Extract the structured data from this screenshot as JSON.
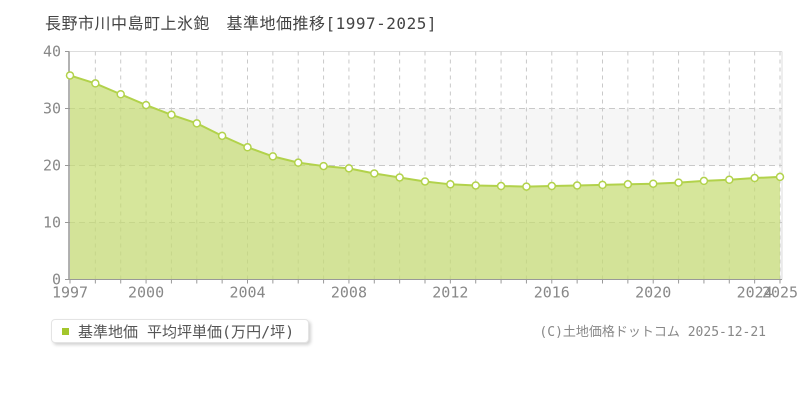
{
  "page": {
    "title": "長野市川中島町上氷鉋　基準地価推移[1997-2025]",
    "copyright": "(C)土地価格ドットコム 2025-12-21"
  },
  "legend": {
    "label": "基準地価 平均坪単価(万円/坪)",
    "marker_color": "#a3c62c"
  },
  "chart_data": {
    "type": "area",
    "title": "長野市川中島町上氷鉋 基準地価推移[1997-2025]",
    "series_name": "基準地価 平均坪単価(万円/坪)",
    "unit": "万円/坪",
    "x": [
      1997,
      1998,
      1999,
      2000,
      2001,
      2002,
      2003,
      2004,
      2005,
      2006,
      2007,
      2008,
      2009,
      2010,
      2011,
      2012,
      2013,
      2014,
      2015,
      2016,
      2017,
      2018,
      2019,
      2020,
      2021,
      2022,
      2023,
      2024,
      2025
    ],
    "values": [
      35.8,
      34.4,
      32.5,
      30.6,
      28.9,
      27.4,
      25.2,
      23.2,
      21.6,
      20.5,
      19.9,
      19.5,
      18.6,
      17.9,
      17.2,
      16.7,
      16.5,
      16.4,
      16.3,
      16.4,
      16.5,
      16.6,
      16.7,
      16.8,
      17.0,
      17.3,
      17.5,
      17.8,
      18.0
    ],
    "xlabel": "",
    "ylabel": "",
    "ylim": [
      0,
      40
    ],
    "y_ticks": [
      0,
      10,
      20,
      30,
      40
    ],
    "x_tick_labels": [
      "1997",
      "2000",
      "2004",
      "2008",
      "2012",
      "2016",
      "2020",
      "2024",
      "2025"
    ],
    "grid": true,
    "grid_style": "dashed",
    "legend_position": "bottom-left",
    "colors": {
      "line": "#b2d24b",
      "fill": "#c4db70",
      "marker_fill": "#ffffff",
      "band_alt": "#f6f6f6",
      "band_main": "#ffffff",
      "grid": "#c9c9c9",
      "border": "#dddddd",
      "axis_y": "#666666",
      "axis_x": "#999999",
      "tick_text": "#888888"
    }
  }
}
